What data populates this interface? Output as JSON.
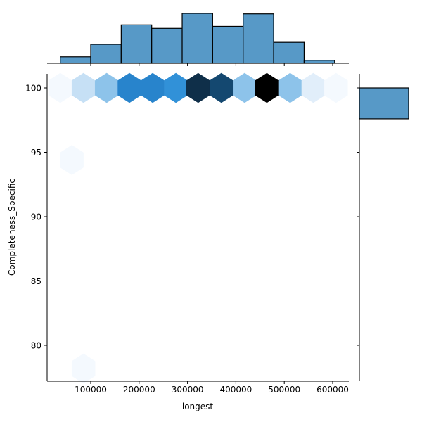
{
  "chart_data": {
    "type": "hexbin-jointplot",
    "title": "",
    "xlabel": "longest",
    "ylabel": "Completeness_Specific",
    "x_ticks": [
      100000,
      200000,
      300000,
      400000,
      500000,
      600000
    ],
    "x_tick_labels": [
      "100000",
      "200000",
      "300000",
      "400000",
      "500000",
      "600000"
    ],
    "y_ticks": [
      80,
      85,
      90,
      95,
      100
    ],
    "y_tick_labels": [
      "80",
      "85",
      "90",
      "95",
      "100"
    ],
    "xlim": [
      10000,
      635000
    ],
    "ylim": [
      77.3,
      101.1
    ],
    "grid": false,
    "colormap": "Blues",
    "hexbins": [
      {
        "x": 37000,
        "y": 100,
        "color": "#f4f9fe"
      },
      {
        "x": 85000,
        "y": 100,
        "color": "#c6e0f5"
      },
      {
        "x": 133000,
        "y": 100,
        "color": "#8dc3ea"
      },
      {
        "x": 180000,
        "y": 100,
        "color": "#2884cc"
      },
      {
        "x": 228000,
        "y": 100,
        "color": "#2884cc"
      },
      {
        "x": 276000,
        "y": 100,
        "color": "#3191d8"
      },
      {
        "x": 322000,
        "y": 100,
        "color": "#0f2f49"
      },
      {
        "x": 370000,
        "y": 100,
        "color": "#144870"
      },
      {
        "x": 418000,
        "y": 100,
        "color": "#8dc3ea"
      },
      {
        "x": 464000,
        "y": 100,
        "color": "#000000"
      },
      {
        "x": 512000,
        "y": 100,
        "color": "#8dc3ea"
      },
      {
        "x": 560000,
        "y": 100,
        "color": "#e1eefa"
      },
      {
        "x": 607000,
        "y": 100,
        "color": "#f4f9fe"
      },
      {
        "x": 61000,
        "y": 94.4,
        "color": "#f4f9fe"
      },
      {
        "x": 85000,
        "y": 78.2,
        "color": "#f4f9fe"
      }
    ],
    "marginal_x_histogram": {
      "bin_edges": [
        37000,
        100000,
        163000,
        226000,
        289000,
        352000,
        415000,
        478000,
        541000,
        604000
      ],
      "relative_heights": [
        0.13,
        0.38,
        0.77,
        0.7,
        1.0,
        0.74,
        0.99,
        0.42,
        0.06
      ],
      "color": "#5799c7"
    },
    "marginal_y_histogram": {
      "bins": [
        {
          "y_from": 97.6,
          "y_to": 100,
          "relative_width": 1.0
        }
      ],
      "color": "#5799c7"
    }
  }
}
